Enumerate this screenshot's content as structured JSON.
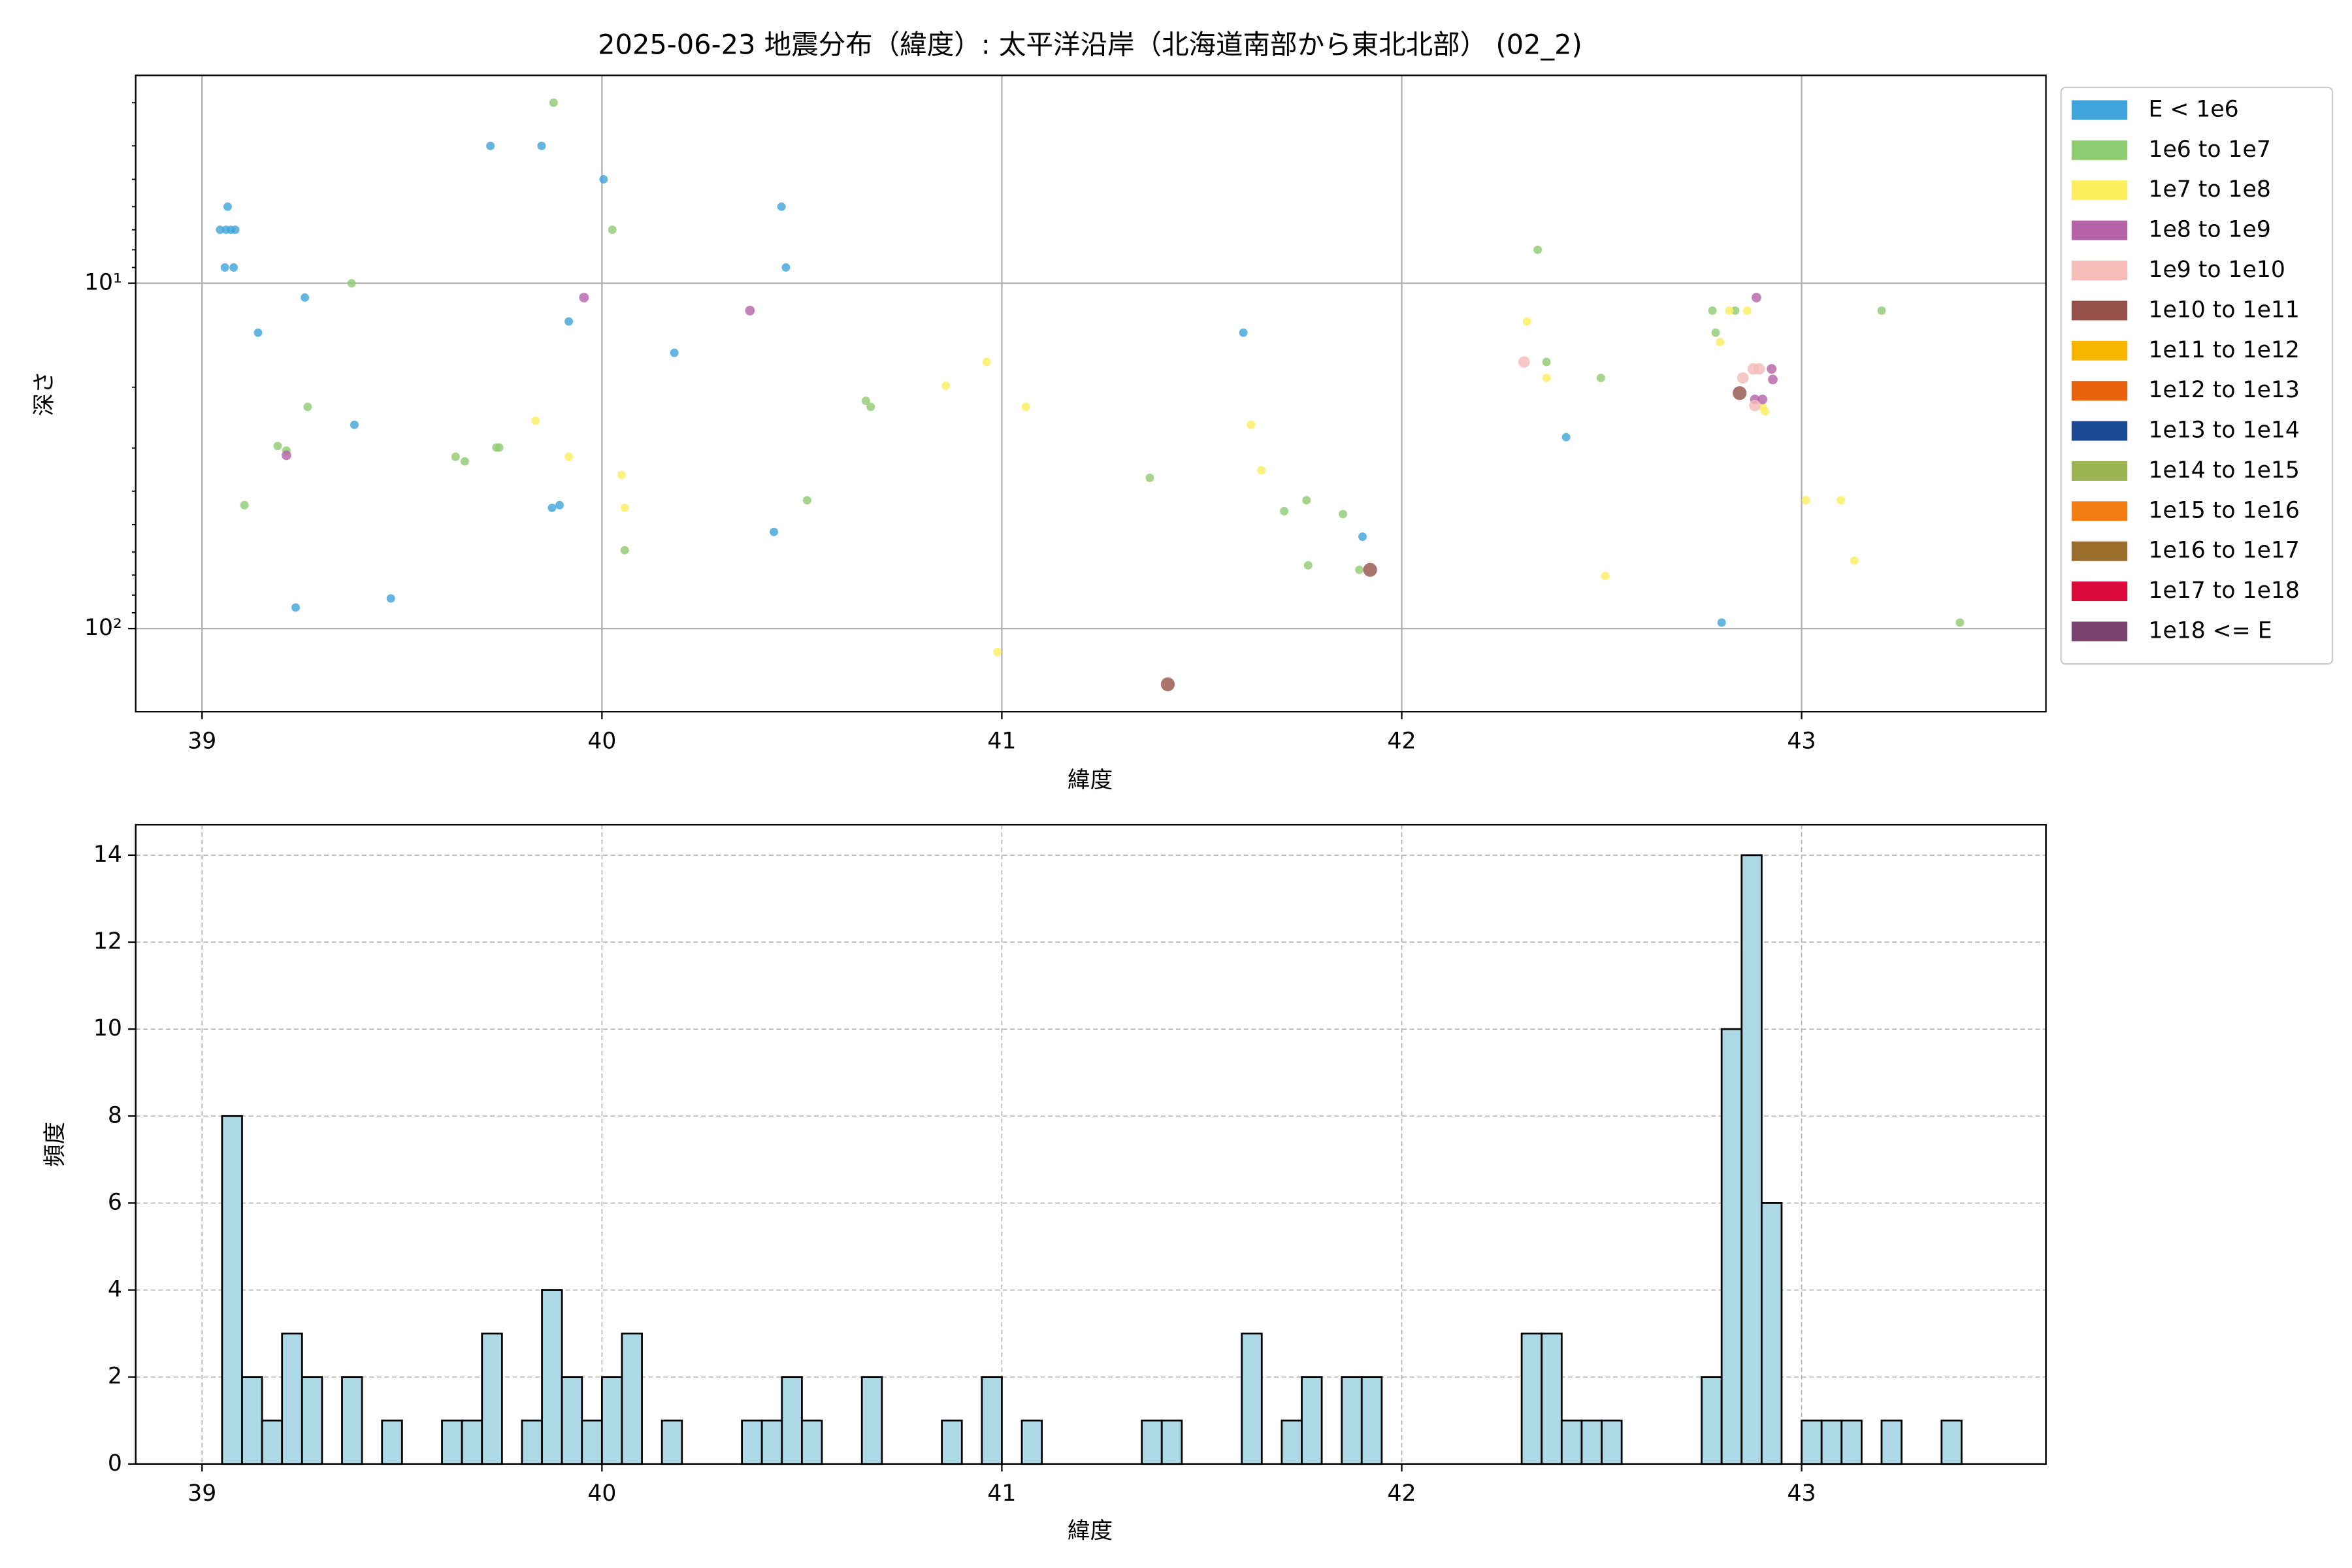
{
  "chart_data": [
    {
      "type": "scatter",
      "title": "2025-06-23 地震分布（緯度）: 太平洋沿岸（北海道南部から東北北部） (02_2)",
      "xlabel": "緯度",
      "ylabel": "深さ",
      "xlim": [
        38.834,
        43.611
      ],
      "xticks": [
        39,
        40,
        41,
        42,
        43
      ],
      "ylim": [
        2.5,
        174
      ],
      "yscale": "log",
      "y_inverted": true,
      "yticks": [
        {
          "value": 10,
          "label": "10¹"
        },
        {
          "value": 100,
          "label": "10²"
        }
      ],
      "yminorticks": [
        3,
        4,
        5,
        6,
        7,
        8,
        9,
        20,
        30,
        40,
        50,
        60,
        70,
        80,
        90
      ],
      "grid": true,
      "grid_style": "solid",
      "legend": "outside-right",
      "series": [
        {
          "name": "E < 1e6",
          "color": "#3fa3dc",
          "marker_size": 2.8,
          "x": [
            39.045,
            39.06,
            39.072,
            39.083,
            39.064,
            39.057,
            39.079,
            39.14,
            39.257,
            39.381,
            39.234,
            39.472,
            39.721,
            39.849,
            40.004,
            39.917,
            39.875,
            39.894,
            40.181,
            40.43,
            40.449,
            40.46,
            41.604,
            42.411,
            41.902,
            42.8
          ],
          "values": [
            7.0,
            7.0,
            7.0,
            7.0,
            6.0,
            9.0,
            9.0,
            13.9,
            11.0,
            25.7,
            86.9,
            81.8,
            4.0,
            4.0,
            5.0,
            12.9,
            44.7,
            43.9,
            15.9,
            52.5,
            6.0,
            9.0,
            13.9,
            27.9,
            54.2,
            96.1
          ]
        },
        {
          "name": "1e6 to 1e7",
          "color": "#8fcb70",
          "marker_size": 2.8,
          "x": [
            39.879,
            39.374,
            40.026,
            39.106,
            39.189,
            39.211,
            39.264,
            39.634,
            39.657,
            39.736,
            39.743,
            40.057,
            40.513,
            40.66,
            40.672,
            41.37,
            41.706,
            41.762,
            41.766,
            41.853,
            41.894,
            42.34,
            42.362,
            42.498,
            42.777,
            42.785,
            42.834,
            43.2,
            43.396
          ],
          "values": [
            3.0,
            10,
            7.0,
            43.9,
            29.6,
            30.5,
            22.8,
            31.8,
            32.8,
            29.9,
            29.9,
            59.3,
            42.5,
            21.9,
            22.8,
            36.6,
            45.7,
            42.5,
            65.6,
            46.6,
            67.6,
            8.0,
            16.9,
            18.8,
            12.0,
            13.9,
            12.0,
            12.0,
            96.1
          ]
        },
        {
          "name": "1e7 to 1e8",
          "color": "#fced5c",
          "marker_size": 2.8,
          "x": [
            39.834,
            39.917,
            40.049,
            40.057,
            40.86,
            40.962,
            41.06,
            40.989,
            41.623,
            41.649,
            42.313,
            42.362,
            42.509,
            42.819,
            42.796,
            42.864,
            42.902,
            42.909,
            43.011,
            43.098,
            43.132
          ],
          "values": [
            25.0,
            31.8,
            35.9,
            44.7,
            19.8,
            16.9,
            22.8,
            117,
            25.7,
            34.8,
            12.9,
            18.8,
            70.4,
            12.0,
            14.8,
            12.0,
            22.8,
            23.5,
            42.5,
            42.5,
            63.6
          ]
        },
        {
          "name": "1e8 to 1e9",
          "color": "#b562a8",
          "marker_size": 3.2,
          "x": [
            39.211,
            39.955,
            40.37,
            42.887,
            42.925,
            42.928,
            42.883,
            42.902
          ],
          "values": [
            31.5,
            11.0,
            12.0,
            11.0,
            17.7,
            19.0,
            21.7,
            21.7
          ]
        },
        {
          "name": "1e9 to 1e10",
          "color": "#f5bcb8",
          "marker_size": 3.8,
          "x": [
            42.306,
            42.853,
            42.879,
            42.894,
            42.883
          ],
          "values": [
            16.9,
            18.8,
            17.7,
            17.7,
            22.6
          ]
        },
        {
          "name": "1e10 to 1e11",
          "color": "#96504a",
          "marker_size": 4.6,
          "x": [
            41.415,
            41.921,
            42.845
          ],
          "values": [
            145,
            67.6,
            20.8
          ]
        },
        {
          "name": "1e11 to 1e12",
          "color": "#f7b500",
          "marker_size": 2.8,
          "x": [],
          "values": []
        },
        {
          "name": "1e12 to 1e13",
          "color": "#e8620c",
          "marker_size": 2.8,
          "x": [],
          "values": []
        },
        {
          "name": "1e13 to 1e14",
          "color": "#1a4a94",
          "marker_size": 2.8,
          "x": [],
          "values": []
        },
        {
          "name": "1e14 to 1e15",
          "color": "#9cb352",
          "marker_size": 2.8,
          "x": [],
          "values": []
        },
        {
          "name": "1e15 to 1e16",
          "color": "#f47d13",
          "marker_size": 2.8,
          "x": [],
          "values": []
        },
        {
          "name": "1e16 to 1e17",
          "color": "#9a6d2a",
          "marker_size": 2.8,
          "x": [],
          "values": []
        },
        {
          "name": "1e17 to 1e18",
          "color": "#dc0a3c",
          "marker_size": 2.8,
          "x": [],
          "values": []
        },
        {
          "name": "1e18 <= E",
          "color": "#7a426f",
          "marker_size": 2.8,
          "x": [],
          "values": []
        }
      ]
    },
    {
      "type": "histogram",
      "xlabel": "緯度",
      "ylabel": "頻度",
      "xlim": [
        38.834,
        43.611
      ],
      "xticks": [
        39,
        40,
        41,
        42,
        43
      ],
      "ylim": [
        0,
        14.7
      ],
      "yticks": [
        0,
        2,
        4,
        6,
        8,
        10,
        12,
        14
      ],
      "grid": true,
      "grid_style": "dashed",
      "color": "#add8e6",
      "edgecolor": "#000000",
      "bins": [
        39.05,
        39.1,
        39.15,
        39.2,
        39.25,
        39.3,
        39.35,
        39.4,
        39.45,
        39.5,
        39.55,
        39.6,
        39.65,
        39.7,
        39.75,
        39.8,
        39.85,
        39.9,
        39.95,
        40.0,
        40.05,
        40.1,
        40.15,
        40.2,
        40.25,
        40.3,
        40.35,
        40.4,
        40.45,
        40.5,
        40.55,
        40.6,
        40.65,
        40.7,
        40.75,
        40.8,
        40.85,
        40.9,
        40.95,
        41.0,
        41.05,
        41.1,
        41.15,
        41.2,
        41.25,
        41.3,
        41.35,
        41.4,
        41.45,
        41.5,
        41.55,
        41.6,
        41.65,
        41.7,
        41.75,
        41.8,
        41.85,
        41.9,
        41.95,
        42.0,
        42.05,
        42.1,
        42.15,
        42.2,
        42.25,
        42.3,
        42.35,
        42.4,
        42.45,
        42.5,
        42.55,
        42.6,
        42.65,
        42.7,
        42.75,
        42.8,
        42.85,
        42.9,
        42.95,
        43.0,
        43.05,
        43.1,
        43.15,
        43.2,
        43.25,
        43.3,
        43.35,
        43.4
      ],
      "values": [
        8,
        2,
        1,
        3,
        2,
        0,
        2,
        0,
        1,
        0,
        0,
        1,
        1,
        3,
        0,
        1,
        4,
        2,
        1,
        2,
        3,
        0,
        1,
        0,
        0,
        0,
        1,
        1,
        2,
        1,
        0,
        0,
        2,
        0,
        0,
        0,
        1,
        0,
        2,
        0,
        1,
        0,
        0,
        0,
        0,
        0,
        1,
        1,
        0,
        0,
        0,
        3,
        0,
        1,
        2,
        0,
        2,
        2,
        0,
        0,
        0,
        0,
        0,
        0,
        0,
        3,
        3,
        1,
        1,
        1,
        0,
        0,
        0,
        0,
        2,
        10,
        14,
        6,
        0,
        1,
        1,
        1,
        0,
        1,
        0,
        0,
        1
      ]
    }
  ]
}
